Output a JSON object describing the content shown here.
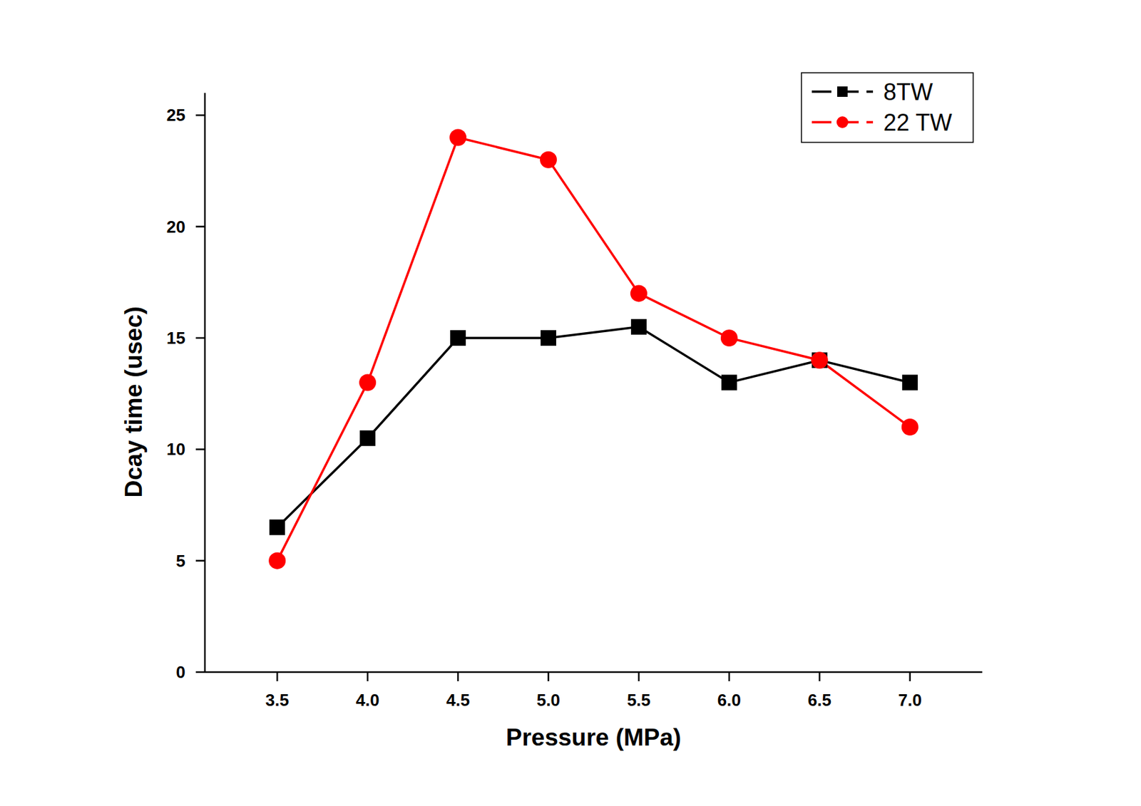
{
  "chart_data": {
    "type": "line",
    "x_label": "Pressure (MPa)",
    "y_label": "Dcay time (usec)",
    "x": [
      3.5,
      4.0,
      4.5,
      5.0,
      5.5,
      6.0,
      6.5,
      7.0
    ],
    "series": [
      {
        "name": "8TW",
        "color": "#000000",
        "marker": "square",
        "line_style": "solid",
        "values": [
          6.5,
          10.5,
          15,
          15,
          15.5,
          13,
          14,
          13
        ]
      },
      {
        "name": "22 TW",
        "color": "#ff0000",
        "marker": "circle",
        "line_style": "solid",
        "values": [
          5,
          13,
          24,
          23,
          17,
          15,
          14,
          11
        ]
      }
    ],
    "xlim": [
      3.1,
      7.4
    ],
    "ylim": [
      0,
      26
    ],
    "xticks": [
      {
        "value": 3.5,
        "label": "3.5"
      },
      {
        "value": 4,
        "label": "4.0"
      },
      {
        "value": 4.5,
        "label": "4.5"
      },
      {
        "value": 5,
        "label": "5.0"
      },
      {
        "value": 5.5,
        "label": "5.5"
      },
      {
        "value": 6,
        "label": "6.0"
      },
      {
        "value": 6.5,
        "label": "6.5"
      },
      {
        "value": 7,
        "label": "7.0"
      }
    ],
    "yticks": [
      0,
      5,
      10,
      15,
      20,
      25
    ],
    "grid": false,
    "legend": "upper right"
  }
}
